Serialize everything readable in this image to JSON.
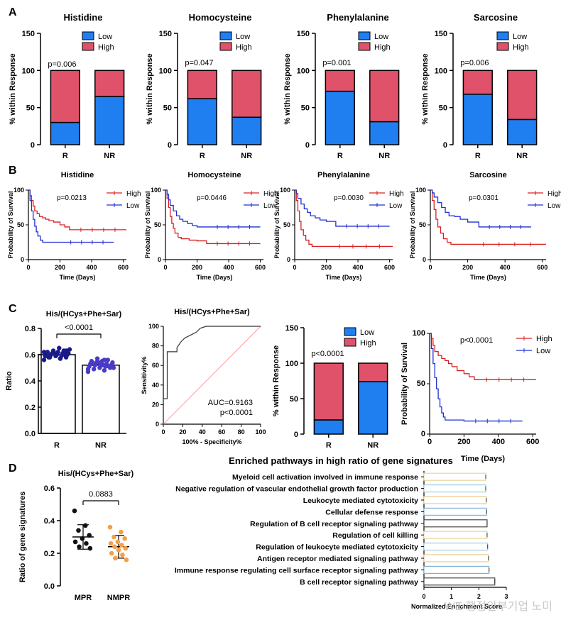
{
  "panel_labels": [
    "A",
    "B",
    "C",
    "D"
  ],
  "watermark": "WE 행정안부기업 노미",
  "chart_data": [
    {
      "id": "A1",
      "type": "bar",
      "stacked": true,
      "title": "Histidine",
      "ylabel": "% within Response",
      "categories": [
        "R",
        "NR"
      ],
      "ylim": [
        0,
        150
      ],
      "yticks": [
        0,
        50,
        100,
        150
      ],
      "legend": [
        "Low",
        "High"
      ],
      "pvalue": "p=0.006",
      "series": [
        {
          "name": "Low",
          "values": [
            30,
            65
          ]
        },
        {
          "name": "High",
          "values": [
            70,
            35
          ]
        }
      ]
    },
    {
      "id": "A2",
      "type": "bar",
      "stacked": true,
      "title": "Homocysteine",
      "ylabel": "% within Response",
      "categories": [
        "R",
        "NR"
      ],
      "ylim": [
        0,
        150
      ],
      "yticks": [
        0,
        50,
        100,
        150
      ],
      "legend": [
        "Low",
        "High"
      ],
      "pvalue": "p=0.047",
      "series": [
        {
          "name": "Low",
          "values": [
            62,
            37
          ]
        },
        {
          "name": "High",
          "values": [
            38,
            63
          ]
        }
      ]
    },
    {
      "id": "A3",
      "type": "bar",
      "stacked": true,
      "title": "Phenylalanine",
      "ylabel": "% within Response",
      "categories": [
        "R",
        "NR"
      ],
      "ylim": [
        0,
        150
      ],
      "yticks": [
        0,
        50,
        100,
        150
      ],
      "legend": [
        "Low",
        "High"
      ],
      "pvalue": "p=0.001",
      "series": [
        {
          "name": "Low",
          "values": [
            72,
            31
          ]
        },
        {
          "name": "High",
          "values": [
            28,
            69
          ]
        }
      ]
    },
    {
      "id": "A4",
      "type": "bar",
      "stacked": true,
      "title": "Sarcosine",
      "ylabel": "% within Response",
      "categories": [
        "R",
        "NR"
      ],
      "ylim": [
        0,
        150
      ],
      "yticks": [
        0,
        50,
        100,
        150
      ],
      "legend": [
        "Low",
        "High"
      ],
      "pvalue": "p=0.006",
      "series": [
        {
          "name": "Low",
          "values": [
            68,
            34
          ]
        },
        {
          "name": "High",
          "values": [
            32,
            66
          ]
        }
      ]
    },
    {
      "id": "B1",
      "type": "line",
      "title": "Histidine",
      "xlabel": "Time (Days)",
      "ylabel": "Probability of Survival",
      "xlim": [
        0,
        620
      ],
      "ylim": [
        0,
        100
      ],
      "xticks": [
        0,
        200,
        400,
        600
      ],
      "yticks": [
        0,
        50,
        100
      ],
      "pvalue": "p=0.0213",
      "legend": [
        "High",
        "Low"
      ],
      "series": [
        {
          "name": "High",
          "x": [
            0,
            10,
            20,
            30,
            40,
            55,
            70,
            90,
            110,
            130,
            160,
            200,
            230,
            260,
            620
          ],
          "y": [
            100,
            92,
            85,
            77,
            70,
            66,
            62,
            60,
            58,
            56,
            54,
            50,
            47,
            43,
            43
          ]
        },
        {
          "name": "Low",
          "x": [
            0,
            10,
            20,
            30,
            40,
            50,
            60,
            75,
            90,
            200,
            540
          ],
          "y": [
            100,
            85,
            70,
            58,
            48,
            40,
            34,
            28,
            25,
            25,
            25
          ]
        }
      ]
    },
    {
      "id": "B2",
      "type": "line",
      "title": "Homocysteine",
      "xlabel": "Time (Days)",
      "ylabel": "Probability of Survival",
      "xlim": [
        0,
        620
      ],
      "ylim": [
        0,
        100
      ],
      "xticks": [
        0,
        200,
        400,
        600
      ],
      "yticks": [
        0,
        50,
        100
      ],
      "pvalue": "p=0.0446",
      "legend": [
        "High",
        "Low"
      ],
      "series": [
        {
          "name": "High",
          "x": [
            0,
            10,
            20,
            30,
            40,
            50,
            60,
            80,
            100,
            150,
            200,
            260,
            600
          ],
          "y": [
            100,
            88,
            75,
            62,
            52,
            45,
            38,
            32,
            30,
            28,
            27,
            23,
            23
          ]
        },
        {
          "name": "Low",
          "x": [
            0,
            10,
            20,
            30,
            50,
            70,
            90,
            110,
            140,
            170,
            200,
            260,
            600
          ],
          "y": [
            100,
            94,
            86,
            78,
            70,
            63,
            58,
            55,
            52,
            49,
            47,
            47,
            47
          ]
        }
      ]
    },
    {
      "id": "B3",
      "type": "line",
      "title": "Phenylalanine",
      "xlabel": "Time (Days)",
      "ylabel": "Probability of Survival",
      "xlim": [
        0,
        620
      ],
      "ylim": [
        0,
        100
      ],
      "xticks": [
        0,
        200,
        400,
        600
      ],
      "yticks": [
        0,
        50,
        100
      ],
      "pvalue": "p=0.0030",
      "legend": [
        "High",
        "Low"
      ],
      "series": [
        {
          "name": "High",
          "x": [
            0,
            10,
            20,
            30,
            40,
            55,
            70,
            90,
            110,
            200,
            620
          ],
          "y": [
            100,
            85,
            70,
            55,
            43,
            35,
            28,
            22,
            19,
            19,
            19
          ]
        },
        {
          "name": "Low",
          "x": [
            0,
            10,
            20,
            40,
            60,
            80,
            100,
            130,
            160,
            200,
            260,
            600
          ],
          "y": [
            100,
            95,
            88,
            80,
            73,
            68,
            63,
            60,
            57,
            55,
            48,
            48
          ]
        }
      ]
    },
    {
      "id": "B4",
      "type": "line",
      "title": "Sarcosine",
      "xlabel": "Time (Days)",
      "ylabel": "Probability of Survival",
      "xlim": [
        0,
        620
      ],
      "ylim": [
        0,
        100
      ],
      "xticks": [
        0,
        200,
        400,
        600
      ],
      "yticks": [
        0,
        50,
        100
      ],
      "pvalue": "p=0.0301",
      "legend": [
        "High",
        "Low"
      ],
      "series": [
        {
          "name": "High",
          "x": [
            0,
            10,
            20,
            30,
            40,
            55,
            70,
            90,
            110,
            200,
            620
          ],
          "y": [
            100,
            85,
            72,
            58,
            47,
            38,
            30,
            25,
            22,
            22,
            22
          ]
        },
        {
          "name": "Low",
          "x": [
            0,
            10,
            20,
            40,
            60,
            80,
            100,
            130,
            160,
            200,
            260,
            540
          ],
          "y": [
            100,
            96,
            90,
            82,
            75,
            68,
            63,
            62,
            58,
            54,
            47,
            47
          ]
        }
      ]
    },
    {
      "id": "C1",
      "type": "scatter",
      "title": "His/(HCys+Phe+Sar)",
      "ylabel": "Ratio",
      "categories": [
        "R",
        "NR"
      ],
      "ylim": [
        0,
        0.8
      ],
      "yticks": [
        0.0,
        0.2,
        0.4,
        0.6,
        0.8
      ],
      "yticklabels": [
        "0.0",
        "0.2",
        "0.4",
        "0.6",
        "0.8"
      ],
      "pvalue": "<0.0001",
      "series": [
        {
          "name": "R",
          "mean": 0.6,
          "values": [
            0.56,
            0.57,
            0.58,
            0.58,
            0.59,
            0.59,
            0.59,
            0.6,
            0.6,
            0.6,
            0.6,
            0.61,
            0.61,
            0.61,
            0.62,
            0.62,
            0.63,
            0.63,
            0.64,
            0.65,
            0.58,
            0.6,
            0.61,
            0.62,
            0.57,
            0.59,
            0.63
          ]
        },
        {
          "name": "NR",
          "mean": 0.52,
          "values": [
            0.47,
            0.48,
            0.49,
            0.5,
            0.5,
            0.51,
            0.51,
            0.52,
            0.52,
            0.52,
            0.53,
            0.53,
            0.54,
            0.54,
            0.55,
            0.55,
            0.56,
            0.57,
            0.5,
            0.52,
            0.53,
            0.51,
            0.54,
            0.49,
            0.56
          ]
        }
      ]
    },
    {
      "id": "C2",
      "type": "line",
      "title": "His/(HCys+Phe+Sar)",
      "xlabel": "100% - Specificity%",
      "ylabel": "Sensitivity%",
      "xlim": [
        0,
        100
      ],
      "ylim": [
        0,
        100
      ],
      "xticks": [
        0,
        20,
        40,
        60,
        80,
        100
      ],
      "yticks": [
        0,
        20,
        40,
        60,
        80,
        100
      ],
      "annotation": [
        "AUC=0.9163",
        "p<0.0001"
      ],
      "series": [
        {
          "name": "ROC",
          "x": [
            0,
            0,
            4,
            4,
            8,
            14,
            14,
            18,
            22,
            26,
            30,
            34,
            38,
            44,
            100
          ],
          "y": [
            0,
            26,
            26,
            74,
            74,
            74,
            78,
            84,
            88,
            90,
            92,
            94,
            98,
            100,
            100
          ]
        }
      ]
    },
    {
      "id": "C3",
      "type": "bar",
      "stacked": true,
      "ylabel": "% within Response",
      "categories": [
        "R",
        "NR"
      ],
      "ylim": [
        0,
        150
      ],
      "yticks": [
        0,
        50,
        100,
        150
      ],
      "legend": [
        "Low",
        "High"
      ],
      "pvalue": "p<0.0001",
      "series": [
        {
          "name": "Low",
          "values": [
            20,
            74
          ]
        },
        {
          "name": "High",
          "values": [
            80,
            26
          ]
        }
      ]
    },
    {
      "id": "C4",
      "type": "line",
      "xlabel": "Time (Days)",
      "ylabel": "Probability of Survival",
      "xlim": [
        0,
        620
      ],
      "ylim": [
        0,
        100
      ],
      "xticks": [
        0,
        200,
        400,
        600
      ],
      "yticks": [
        0,
        50,
        100
      ],
      "pvalue": "p<0.0001",
      "legend": [
        "High",
        "Low"
      ],
      "series": [
        {
          "name": "High",
          "x": [
            0,
            10,
            20,
            30,
            50,
            70,
            90,
            110,
            130,
            160,
            200,
            230,
            260,
            620
          ],
          "y": [
            100,
            95,
            88,
            82,
            78,
            75,
            73,
            70,
            67,
            63,
            60,
            57,
            54,
            54
          ]
        },
        {
          "name": "Low",
          "x": [
            0,
            10,
            20,
            30,
            40,
            50,
            60,
            70,
            80,
            90,
            200,
            540
          ],
          "y": [
            100,
            85,
            70,
            56,
            45,
            35,
            27,
            21,
            17,
            14,
            13,
            13
          ]
        }
      ]
    },
    {
      "id": "D1",
      "type": "scatter",
      "title": "His/(HCys+Phe+Sar)",
      "ylabel": "Ratio of gene signatures",
      "categories": [
        "MPR",
        "NMPR"
      ],
      "ylim": [
        0,
        0.6
      ],
      "yticks": [
        0.0,
        0.2,
        0.4,
        0.6
      ],
      "yticklabels": [
        "0.0",
        "0.2",
        "0.4",
        "0.6"
      ],
      "pvalue": "0.0883",
      "series": [
        {
          "name": "MPR",
          "mean": 0.3,
          "sd": 0.075,
          "values": [
            0.46,
            0.37,
            0.34,
            0.31,
            0.29,
            0.27,
            0.26,
            0.24,
            0.23
          ]
        },
        {
          "name": "NMPR",
          "mean": 0.24,
          "sd": 0.07,
          "values": [
            0.36,
            0.33,
            0.3,
            0.29,
            0.27,
            0.26,
            0.25,
            0.24,
            0.23,
            0.22,
            0.2,
            0.19,
            0.17,
            0.16
          ]
        }
      ]
    },
    {
      "id": "D2",
      "type": "bar",
      "orientation": "horizontal",
      "title": "Enriched pathways in high ratio of gene signatures",
      "xlabel": "Normalized Enrichment Score",
      "xlim": [
        0,
        3
      ],
      "xticks": [
        0,
        1,
        2,
        3
      ],
      "categories": [
        "Myeloid cell activation involved in immune response",
        "Negative regulation of vascular endothelial growth factor production",
        "Leukocyte mediated cytotoxicity",
        "Cellular defense response",
        "Regulation of B cell receptor signaling pathway",
        "Regulation of cell killing",
        "Regulation of leukocyte mediated cytotoxicity",
        "Antigen receptor mediated signaling pathway",
        "Immune response regulating cell surface receptor signaling pathway",
        "B cell receptor signaling pathway"
      ],
      "values": [
        2.25,
        2.25,
        2.27,
        2.28,
        2.3,
        2.3,
        2.32,
        2.35,
        2.37,
        2.58
      ],
      "bar_colors": [
        "#e8d69a",
        "#9ecfe0",
        "#f0c98a",
        "#7fb3d6",
        "#4a4a4a",
        "#e8d69a",
        "#9ecfe0",
        "#f0c98a",
        "#7fb3d6",
        "#4a4a4a"
      ]
    }
  ]
}
